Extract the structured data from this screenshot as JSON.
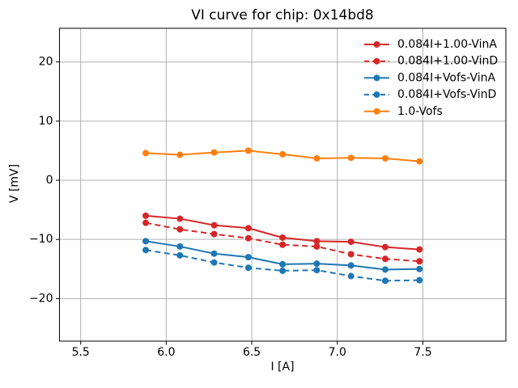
{
  "chart_data": {
    "type": "line",
    "title": "VI curve for chip: 0x14bd8",
    "xlabel": "I [A]",
    "ylabel": "V [mV]",
    "x": [
      5.88,
      6.08,
      6.28,
      6.48,
      6.68,
      6.88,
      7.08,
      7.28,
      7.48
    ],
    "series": [
      {
        "name": "0.084I+1.00-VinA",
        "color": "#d62728",
        "line_style": "solid",
        "marker": "circle",
        "values": [
          -6.0,
          -6.5,
          -7.6,
          -8.1,
          -9.7,
          -10.3,
          -10.4,
          -11.3,
          -11.7
        ]
      },
      {
        "name": "0.084I+1.00-VinD",
        "color": "#d62728",
        "line_style": "dashed",
        "marker": "circle",
        "values": [
          -7.2,
          -8.3,
          -9.1,
          -9.8,
          -10.9,
          -11.2,
          -12.5,
          -13.3,
          -13.7
        ]
      },
      {
        "name": "0.084I+Vofs-VinA",
        "color": "#1f77b4",
        "line_style": "solid",
        "marker": "circle",
        "values": [
          -10.3,
          -11.2,
          -12.4,
          -13.0,
          -14.2,
          -14.1,
          -14.4,
          -15.1,
          -15.0
        ]
      },
      {
        "name": "0.084I+Vofs-VinD",
        "color": "#1f77b4",
        "line_style": "dashed",
        "marker": "circle",
        "values": [
          -11.8,
          -12.7,
          -13.9,
          -14.8,
          -15.3,
          -15.2,
          -16.2,
          -17.0,
          -16.9
        ]
      },
      {
        "name": "1.0-Vofs",
        "color": "#ff7f0e",
        "line_style": "solid",
        "marker": "circle",
        "values": [
          4.6,
          4.3,
          4.7,
          5.0,
          4.4,
          3.7,
          3.8,
          3.7,
          3.2
        ]
      }
    ],
    "xlim": [
      5.376,
      7.985
    ],
    "ylim": [
      -27.2,
      25.7
    ],
    "xticks": [
      5.5,
      6.0,
      6.5,
      7.0,
      7.5
    ],
    "xtick_labels": [
      "5.5",
      "6.0",
      "6.5",
      "7.0",
      "7.5"
    ],
    "yticks": [
      20,
      10,
      0,
      -10,
      -20
    ],
    "ytick_labels": [
      "20",
      "10",
      "0",
      "−10",
      "−20"
    ],
    "grid": true,
    "grid_color": "#b0b0b0",
    "spine_color": "#000000",
    "background": "#ffffff",
    "legend_position": "upper right",
    "legend_frame": false
  }
}
